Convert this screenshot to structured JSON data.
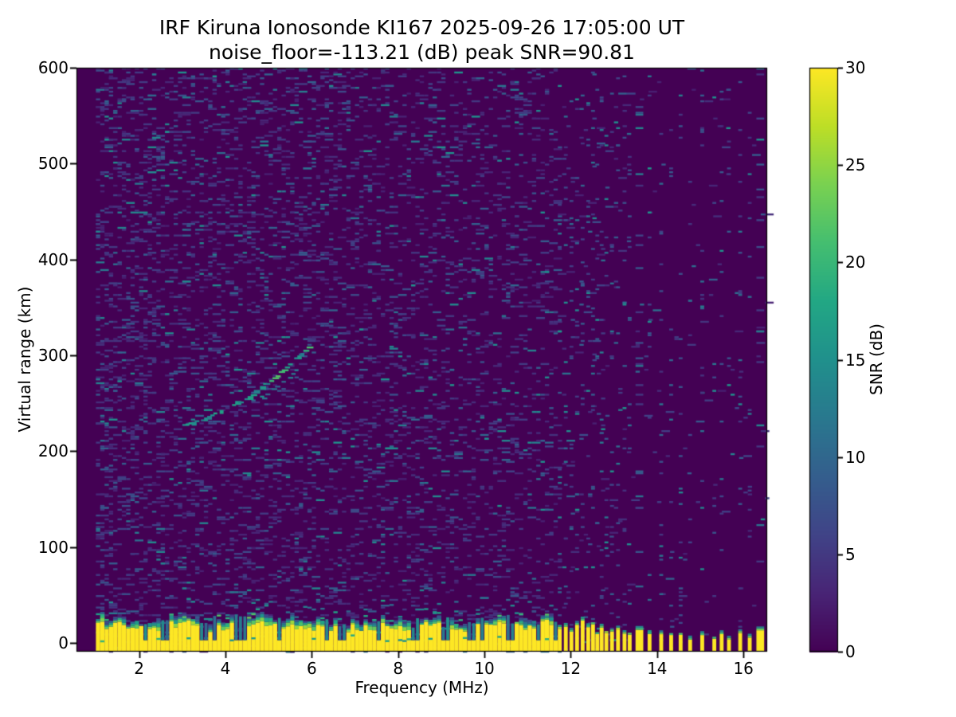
{
  "chart_data": {
    "type": "heatmap",
    "title_line1": "IRF Kiruna Ionosonde KI167 2025-09-26 17:05:00  UT",
    "title_line2": "noise_floor=-113.21 (dB) peak SNR=90.81",
    "xlabel": "Frequency (MHz)",
    "ylabel": "Virtual range (km)",
    "colorbar_label": "SNR (dB)",
    "colormap": "viridis",
    "grid": false,
    "legend": "colorbar-right",
    "noise_floor_db": -113.21,
    "peak_snr_db": 90.81,
    "xlim_mhz": [
      0.55,
      16.55
    ],
    "ylim_km": [
      -9,
      600
    ],
    "snr_scale_db": [
      0,
      30
    ],
    "xticks_mhz": [
      2,
      4,
      6,
      8,
      10,
      12,
      14,
      16
    ],
    "yticks_km": [
      0,
      100,
      200,
      300,
      400,
      500,
      600
    ],
    "colorbar_ticks_db": [
      0,
      5,
      10,
      15,
      20,
      25,
      30
    ],
    "sounding_start_mhz": 1.0,
    "frequency_bin_mhz": 0.1,
    "range_bin_km": 2,
    "ground_clutter_band": {
      "freq_range_mhz": [
        1.0,
        11.65
      ],
      "top_km_range": [
        8,
        26
      ],
      "snr_db": 30,
      "notch_freqs_mhz": [
        2.1,
        2.55,
        3.45,
        4.35,
        5.2,
        6.3,
        6.65,
        7.5,
        8.35,
        9.05,
        9.65,
        10.55,
        11.2
      ]
    },
    "echo_trace": {
      "points_mhz_km": [
        [
          2.93,
          228
        ],
        [
          3.25,
          231
        ],
        [
          3.5,
          235
        ],
        [
          3.75,
          240
        ],
        [
          4.0,
          246
        ],
        [
          4.25,
          252
        ],
        [
          4.5,
          258
        ],
        [
          4.75,
          266
        ],
        [
          5.0,
          274
        ],
        [
          5.25,
          283
        ],
        [
          5.5,
          293
        ],
        [
          5.75,
          303
        ],
        [
          6.02,
          314
        ]
      ],
      "snr_db_range": [
        12,
        24
      ],
      "bright_freqs_mhz": [
        [
          4.95,
          5.35
        ],
        [
          5.78,
          6.05
        ]
      ],
      "second_branch_offset_km": -12,
      "second_branch_freq_range_mhz": [
        4.85,
        5.8
      ]
    },
    "speckle_density_per_column": [
      {
        "f_range_mhz": [
          1.0,
          1.35
        ],
        "count": 70
      },
      {
        "f_range_mhz": [
          1.35,
          2.6
        ],
        "count": 55
      },
      {
        "f_range_mhz": [
          2.6,
          6.6
        ],
        "count": 48
      },
      {
        "f_range_mhz": [
          6.6,
          9.0
        ],
        "count": 40
      },
      {
        "f_range_mhz": [
          9.0,
          11.65
        ],
        "count": 34
      },
      {
        "f_range_mhz": [
          11.65,
          13.35
        ],
        "count": 10
      },
      {
        "f_range_mhz": [
          13.35,
          16.55
        ],
        "count": 3
      }
    ],
    "rfi_stations": [
      {
        "f_mhz": 11.7,
        "column_dashes": 22,
        "bar_top_km": 16,
        "wide": false
      },
      {
        "f_mhz": 11.84,
        "column_dashes": 20,
        "bar_top_km": 20,
        "wide": false
      },
      {
        "f_mhz": 11.97,
        "column_dashes": 22,
        "bar_top_km": 12,
        "wide": false
      },
      {
        "f_mhz": 12.1,
        "column_dashes": 18,
        "bar_top_km": 18,
        "wide": false
      },
      {
        "f_mhz": 12.23,
        "column_dashes": 20,
        "bar_top_km": 22,
        "wide": false
      },
      {
        "f_mhz": 12.36,
        "column_dashes": 18,
        "bar_top_km": 14,
        "wide": false
      },
      {
        "f_mhz": 12.47,
        "column_dashes": 22,
        "bar_top_km": 19,
        "wide": false
      },
      {
        "f_mhz": 12.57,
        "column_dashes": 16,
        "bar_top_km": 12,
        "wide": false
      },
      {
        "f_mhz": 12.67,
        "column_dashes": 20,
        "bar_top_km": 16,
        "wide": false
      },
      {
        "f_mhz": 12.78,
        "column_dashes": 14,
        "bar_top_km": 10,
        "wide": false
      },
      {
        "f_mhz": 12.91,
        "column_dashes": 18,
        "bar_top_km": 14,
        "wide": false
      },
      {
        "f_mhz": 13.05,
        "column_dashes": 16,
        "bar_top_km": 18,
        "wide": false
      },
      {
        "f_mhz": 13.2,
        "column_dashes": 14,
        "bar_top_km": 10,
        "wide": false
      },
      {
        "f_mhz": 13.32,
        "column_dashes": 12,
        "bar_top_km": 8,
        "wide": false
      },
      {
        "f_mhz": 13.5,
        "column_dashes": 24,
        "bar_top_km": 14,
        "wide": true
      },
      {
        "f_mhz": 13.78,
        "column_dashes": 14,
        "bar_top_km": 8,
        "wide": false
      },
      {
        "f_mhz": 14.05,
        "column_dashes": 22,
        "bar_top_km": 10,
        "wide": false
      },
      {
        "f_mhz": 14.28,
        "column_dashes": 14,
        "bar_top_km": 11,
        "wide": false
      },
      {
        "f_mhz": 14.5,
        "column_dashes": 20,
        "bar_top_km": 9,
        "wide": false
      },
      {
        "f_mhz": 14.72,
        "column_dashes": 8,
        "bar_top_km": 5,
        "wide": false
      },
      {
        "f_mhz": 15.0,
        "column_dashes": 22,
        "bar_top_km": 10,
        "wide": false
      },
      {
        "f_mhz": 15.28,
        "column_dashes": 9,
        "bar_top_km": 6,
        "wide": false
      },
      {
        "f_mhz": 15.45,
        "column_dashes": 14,
        "bar_top_km": 8,
        "wide": false
      },
      {
        "f_mhz": 15.62,
        "column_dashes": 8,
        "bar_top_km": 4,
        "wide": false
      },
      {
        "f_mhz": 15.88,
        "column_dashes": 20,
        "bar_top_km": 9,
        "wide": false
      },
      {
        "f_mhz": 16.1,
        "column_dashes": 12,
        "bar_top_km": 6,
        "wide": false
      },
      {
        "f_mhz": 16.3,
        "column_dashes": 18,
        "bar_top_km": 11,
        "wide": true
      }
    ],
    "colors": {
      "background": "#ffffff",
      "plot_background": "#440154",
      "saturated": "#fde725",
      "axis": "#000000"
    }
  }
}
